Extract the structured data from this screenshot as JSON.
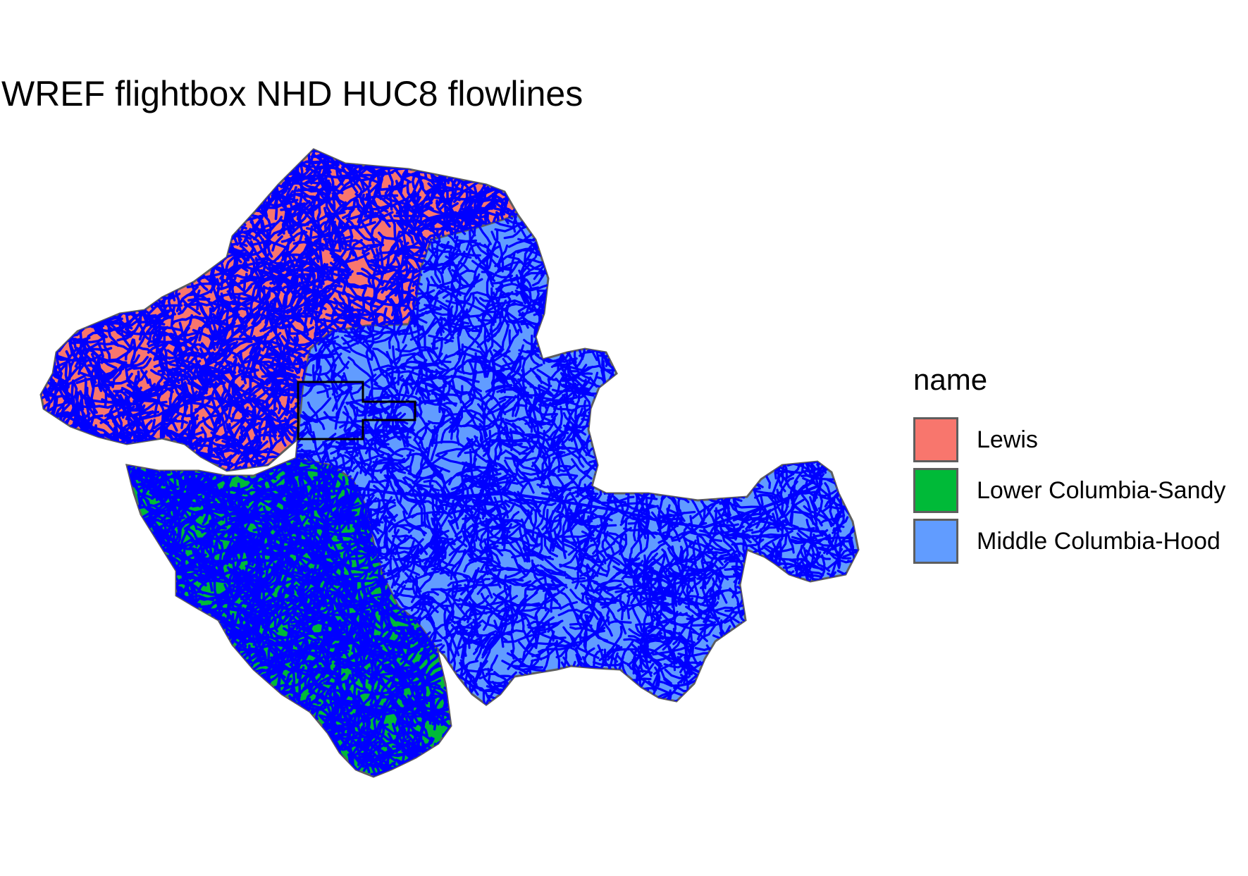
{
  "map": {
    "title": "WREF flightbox NHD HUC8 flowlines",
    "flowline_color": "#0000ff",
    "boundary_color": "#5e5e5e",
    "flightbox_color": "#000000"
  },
  "legend": {
    "title": "name",
    "items": [
      {
        "label": "Lewis",
        "color": "#f8766d"
      },
      {
        "label": "Lower Columbia-Sandy",
        "color": "#00ba38"
      },
      {
        "label": "Middle Columbia-Hood",
        "color": "#619cff"
      }
    ]
  }
}
